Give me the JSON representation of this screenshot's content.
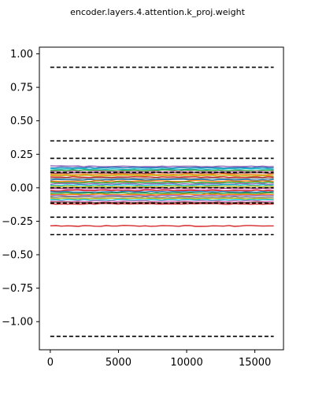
{
  "chart_data": {
    "type": "line",
    "title": "encoder.layers.4.attention.k_proj.weight",
    "xlabel": "",
    "ylabel": "",
    "xlim": [
      -800,
      17100
    ],
    "ylim": [
      -1.21,
      1.05
    ],
    "x_range": [
      0,
      16383
    ],
    "xticks": [
      0,
      5000,
      10000,
      15000
    ],
    "xtick_labels": [
      "0",
      "5000",
      "10000",
      "15000"
    ],
    "yticks": [
      1.0,
      0.75,
      0.5,
      0.25,
      0.0,
      -0.25,
      -0.5,
      -0.75,
      -1.0
    ],
    "ytick_labels": [
      "1.00",
      "0.75",
      "0.50",
      "0.25",
      "0.00",
      "−0.25",
      "−0.50",
      "−0.75",
      "−1.00"
    ],
    "grid": false,
    "legend": "none",
    "series": [
      {
        "y": 0.16,
        "color": "#9467bd"
      },
      {
        "y": 0.15,
        "color": "#1f77b4"
      },
      {
        "y": 0.14,
        "color": "#17becf"
      },
      {
        "y": 0.13,
        "color": "#2ca02c"
      },
      {
        "y": 0.12,
        "color": "#e377c2"
      },
      {
        "y": 0.11,
        "color": "#8c564b"
      },
      {
        "y": 0.1,
        "color": "#ff7f0e"
      },
      {
        "y": 0.09,
        "color": "#bcbd22"
      },
      {
        "y": 0.08,
        "color": "#d62728"
      },
      {
        "y": 0.07,
        "color": "#7f7f7f"
      },
      {
        "y": 0.06,
        "color": "#1f77b4"
      },
      {
        "y": 0.05,
        "color": "#ff7f0e"
      },
      {
        "y": 0.04,
        "color": "#2ca02c"
      },
      {
        "y": 0.03,
        "color": "#9467bd"
      },
      {
        "y": 0.02,
        "color": "#17becf"
      },
      {
        "y": 0.01,
        "color": "#bcbd22"
      },
      {
        "y": 0.0,
        "color": "#8c564b"
      },
      {
        "y": -0.01,
        "color": "#e377c2"
      },
      {
        "y": -0.02,
        "color": "#d62728"
      },
      {
        "y": -0.03,
        "color": "#1f77b4"
      },
      {
        "y": -0.04,
        "color": "#2ca02c"
      },
      {
        "y": -0.05,
        "color": "#ff7f0e"
      },
      {
        "y": -0.06,
        "color": "#9467bd"
      },
      {
        "y": -0.07,
        "color": "#7f7f7f"
      },
      {
        "y": -0.08,
        "color": "#bcbd22"
      },
      {
        "y": -0.09,
        "color": "#17becf"
      },
      {
        "y": -0.1,
        "color": "#e377c2"
      },
      {
        "y": -0.11,
        "color": "#8c564b"
      },
      {
        "y": -0.12,
        "color": "#d62728"
      },
      {
        "y": -0.285,
        "color": "#d62728"
      }
    ],
    "reference_lines": [
      0.9,
      0.35,
      0.22,
      0.115,
      0.0,
      -0.115,
      -0.22,
      -0.35,
      -1.11
    ]
  }
}
